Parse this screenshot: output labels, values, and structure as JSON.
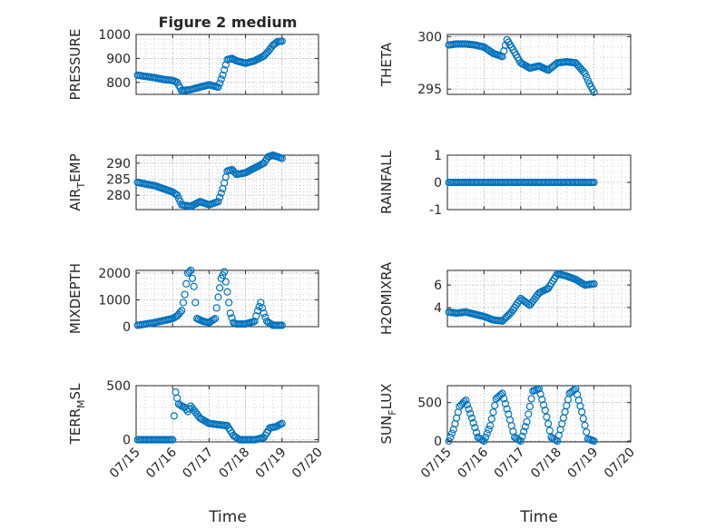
{
  "figure": {
    "title": "Figure 2 medium",
    "xlabel": "Time",
    "x_ticks": [
      "07/15",
      "07/16",
      "07/17",
      "07/18",
      "07/19",
      "07/20"
    ],
    "x_range": [
      "07/15",
      "07/20"
    ],
    "marker": "open-circle",
    "colors": {
      "series": "#0072BD",
      "axes": "#262626",
      "grid": "#b0b0b0",
      "background": "#ffffff"
    }
  },
  "chart_data": [
    {
      "type": "scatter",
      "ylabel": "PRESSURE",
      "title": "Figure 2 medium",
      "ylim": [
        750,
        1000
      ],
      "y_ticks": [
        800,
        900,
        1000
      ],
      "grid": true,
      "x": [
        "07/15 01:00",
        "07/15 06:00",
        "07/15 12:00",
        "07/15 18:00",
        "07/16 00:00",
        "07/16 03:00",
        "07/16 06:00",
        "07/16 12:00",
        "07/16 18:00",
        "07/17 00:00",
        "07/17 06:00",
        "07/17 09:00",
        "07/17 12:00",
        "07/17 15:00",
        "07/17 18:00",
        "07/18 00:00",
        "07/18 06:00",
        "07/18 12:00",
        "07/18 15:00",
        "07/18 18:00",
        "07/18 21:00",
        "07/19 00:00"
      ],
      "y": [
        830,
        825,
        820,
        812,
        808,
        800,
        765,
        770,
        780,
        790,
        780,
        830,
        895,
        900,
        890,
        880,
        890,
        910,
        930,
        955,
        970,
        972
      ]
    },
    {
      "type": "scatter",
      "ylabel": "THETA",
      "ylim": [
        294.5,
        300.2
      ],
      "y_ticks": [
        295,
        300
      ],
      "grid": true,
      "x": [
        "07/15 01:00",
        "07/15 06:00",
        "07/15 12:00",
        "07/15 18:00",
        "07/16 00:00",
        "07/16 06:00",
        "07/16 12:00",
        "07/16 15:00",
        "07/16 18:00",
        "07/17 00:00",
        "07/17 06:00",
        "07/17 12:00",
        "07/17 18:00",
        "07/18 00:00",
        "07/18 06:00",
        "07/18 12:00",
        "07/18 15:00",
        "07/18 18:00",
        "07/18 21:00",
        "07/19 00:00"
      ],
      "y": [
        299.2,
        299.3,
        299.3,
        299.2,
        299.0,
        298.4,
        298.1,
        299.7,
        299.0,
        297.5,
        297.0,
        297.2,
        296.8,
        297.5,
        297.6,
        297.5,
        297.0,
        296.5,
        295.5,
        294.7
      ]
    },
    {
      "type": "scatter",
      "ylabel": "AIR",
      "ylabel_sub": "T",
      "ylabel_rest": "EMP",
      "ylim": [
        275.5,
        292.5
      ],
      "y_ticks": [
        280,
        285,
        290
      ],
      "grid": true,
      "x": [
        "07/15 01:00",
        "07/15 06:00",
        "07/15 12:00",
        "07/15 18:00",
        "07/16 00:00",
        "07/16 03:00",
        "07/16 06:00",
        "07/16 12:00",
        "07/16 18:00",
        "07/17 00:00",
        "07/17 06:00",
        "07/17 09:00",
        "07/17 12:00",
        "07/17 15:00",
        "07/17 18:00",
        "07/18 00:00",
        "07/18 06:00",
        "07/18 12:00",
        "07/18 15:00",
        "07/18 18:00",
        "07/18 21:00",
        "07/19 00:00"
      ],
      "y": [
        284,
        283.5,
        283,
        282,
        281,
        280,
        277,
        276.5,
        278,
        277,
        278,
        282,
        287.5,
        288,
        286.5,
        287,
        288.5,
        290,
        292,
        292.5,
        292,
        291.5
      ]
    },
    {
      "type": "scatter",
      "ylabel": "RAINFALL",
      "ylim": [
        -1,
        1
      ],
      "y_ticks": [
        -1,
        0,
        1
      ],
      "grid": true,
      "x": [
        "07/15 01:00",
        "07/15 12:00",
        "07/16 00:00",
        "07/16 12:00",
        "07/17 00:00",
        "07/17 12:00",
        "07/18 00:00",
        "07/18 12:00",
        "07/19 00:00"
      ],
      "y": [
        0,
        0,
        0,
        0,
        0,
        0,
        0,
        0,
        0
      ]
    },
    {
      "type": "scatter",
      "ylabel": "MIXDEPTH",
      "ylim": [
        0,
        2100
      ],
      "y_ticks": [
        0,
        1000,
        2000
      ],
      "grid": true,
      "x": [
        "07/15 01:00",
        "07/15 12:00",
        "07/16 00:00",
        "07/16 03:00",
        "07/16 06:00",
        "07/16 08:00",
        "07/16 10:00",
        "07/16 12:00",
        "07/16 14:00",
        "07/16 16:00",
        "07/16 20:00",
        "07/17 00:00",
        "07/17 04:00",
        "07/17 06:00",
        "07/17 08:00",
        "07/17 10:00",
        "07/17 12:00",
        "07/17 14:00",
        "07/17 16:00",
        "07/17 18:00",
        "07/18 00:00",
        "07/18 06:00",
        "07/18 08:00",
        "07/18 10:00",
        "07/18 12:00",
        "07/18 14:00",
        "07/18 18:00",
        "07/19 00:00"
      ],
      "y": [
        50,
        150,
        300,
        400,
        600,
        1200,
        2000,
        2100,
        1500,
        300,
        200,
        150,
        300,
        1100,
        1800,
        2050,
        1300,
        500,
        150,
        100,
        100,
        200,
        600,
        900,
        500,
        200,
        50,
        50
      ]
    },
    {
      "type": "scatter",
      "ylabel": "H2OMIXRA",
      "ylim": [
        2.3,
        7.3
      ],
      "y_ticks": [
        4,
        6
      ],
      "grid": true,
      "x": [
        "07/15 01:00",
        "07/15 06:00",
        "07/15 12:00",
        "07/15 18:00",
        "07/16 00:00",
        "07/16 06:00",
        "07/16 12:00",
        "07/16 18:00",
        "07/17 00:00",
        "07/17 06:00",
        "07/17 12:00",
        "07/17 18:00",
        "07/18 00:00",
        "07/18 06:00",
        "07/18 12:00",
        "07/18 18:00",
        "07/19 00:00"
      ],
      "y": [
        3.6,
        3.5,
        3.6,
        3.4,
        3.2,
        2.9,
        2.8,
        3.6,
        4.8,
        4.2,
        5.3,
        5.7,
        7.0,
        6.8,
        6.5,
        6.0,
        6.1
      ]
    },
    {
      "type": "scatter",
      "ylabel": "TERR",
      "ylabel_sub": "M",
      "ylabel_rest": "SL",
      "ylim": [
        -20,
        500
      ],
      "y_ticks": [
        0,
        500
      ],
      "grid": true,
      "x": [
        "07/15 01:00",
        "07/15 12:00",
        "07/16 00:00",
        "07/16 02:00",
        "07/16 04:00",
        "07/16 06:00",
        "07/16 08:00",
        "07/16 10:00",
        "07/16 12:00",
        "07/16 18:00",
        "07/17 00:00",
        "07/17 06:00",
        "07/17 12:00",
        "07/17 16:00",
        "07/17 20:00",
        "07/18 00:00",
        "07/18 06:00",
        "07/18 12:00",
        "07/18 16:00",
        "07/18 20:00",
        "07/19 00:00"
      ],
      "y": [
        0,
        0,
        0,
        440,
        330,
        310,
        300,
        260,
        310,
        200,
        150,
        140,
        130,
        40,
        0,
        0,
        0,
        20,
        110,
        120,
        150
      ]
    },
    {
      "type": "scatter",
      "ylabel": "SUN",
      "ylabel_sub": "F",
      "ylabel_rest": "LUX",
      "ylim": [
        -10,
        720
      ],
      "y_ticks": [
        0,
        500
      ],
      "grid": true,
      "x": [
        "07/15 01:00",
        "07/15 04:00",
        "07/15 08:00",
        "07/15 12:00",
        "07/15 16:00",
        "07/15 20:00",
        "07/16 00:00",
        "07/16 04:00",
        "07/16 08:00",
        "07/16 12:00",
        "07/16 16:00",
        "07/16 20:00",
        "07/17 00:00",
        "07/17 04:00",
        "07/17 08:00",
        "07/17 12:00",
        "07/17 16:00",
        "07/17 20:00",
        "07/18 00:00",
        "07/18 04:00",
        "07/18 08:00",
        "07/18 12:00",
        "07/18 16:00",
        "07/18 20:00",
        "07/19 00:00"
      ],
      "y": [
        0,
        150,
        450,
        530,
        300,
        50,
        0,
        200,
        550,
        620,
        350,
        50,
        0,
        250,
        650,
        680,
        400,
        50,
        0,
        300,
        620,
        680,
        380,
        30,
        0
      ]
    }
  ]
}
